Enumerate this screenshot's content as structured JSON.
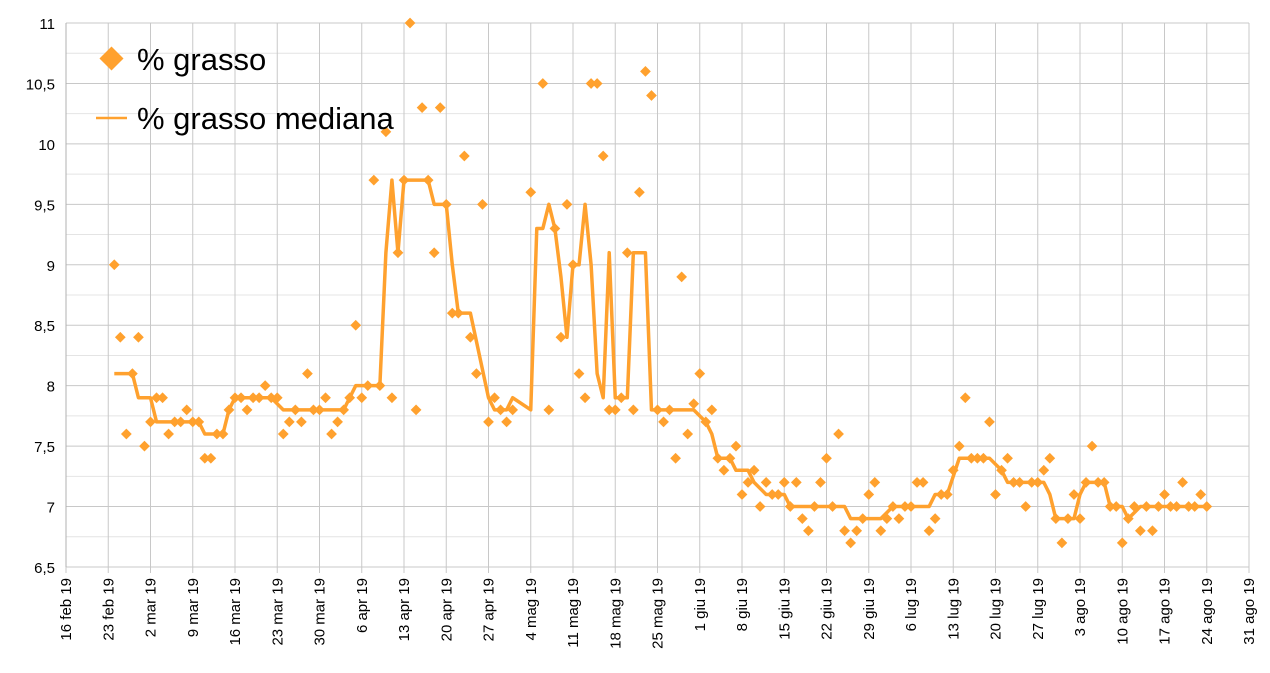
{
  "chart_data": {
    "type": "scatter",
    "title": "",
    "xlabel": "",
    "ylabel": "",
    "x_unit": "days since 16 feb 19",
    "xlim": [
      0,
      196
    ],
    "ylim": [
      6.5,
      11
    ],
    "grid": true,
    "legend_position": "top-left",
    "colors": {
      "series": "#FFA12E",
      "grid_major": "#c8c8c8",
      "grid_minor": "#e4e4e4",
      "axis": "#b0b0b0"
    },
    "x_tick_labels": [
      "16 feb 19",
      "23 feb 19",
      "2 mar 19",
      "9 mar 19",
      "16 mar 19",
      "23 mar 19",
      "30 mar 19",
      "6 apr 19",
      "13 apr 19",
      "20 apr 19",
      "27 apr 19",
      "4 mag 19",
      "11 mag 19",
      "18 mag 19",
      "25 mag 19",
      "1 giu 19",
      "8 giu 19",
      "15 giu 19",
      "22 giu 19",
      "29 giu 19",
      "6 lug 19",
      "13 lug 19",
      "20 lug 19",
      "27 lug 19",
      "3 ago 19",
      "10 ago 19",
      "17 ago 19",
      "24 ago 19",
      "31 ago 19"
    ],
    "x_tick_step_days": 7,
    "y_ticks": [
      6.5,
      7,
      7.5,
      8,
      8.5,
      9,
      9.5,
      10,
      10.5,
      11
    ],
    "y_tick_labels": [
      "6,5",
      "7",
      "7,5",
      "8",
      "8,5",
      "9",
      "9,5",
      "10",
      "10,5",
      "11"
    ],
    "series": [
      {
        "name": "% grasso",
        "kind": "points",
        "marker": "diamond",
        "points": [
          [
            8,
            9.0
          ],
          [
            9,
            8.4
          ],
          [
            10,
            7.6
          ],
          [
            11,
            8.1
          ],
          [
            12,
            8.4
          ],
          [
            13,
            7.5
          ],
          [
            14,
            7.7
          ],
          [
            15,
            7.9
          ],
          [
            16,
            7.9
          ],
          [
            17,
            7.6
          ],
          [
            18,
            7.7
          ],
          [
            19,
            7.7
          ],
          [
            20,
            7.8
          ],
          [
            21,
            7.7
          ],
          [
            22,
            7.7
          ],
          [
            23,
            7.4
          ],
          [
            24,
            7.4
          ],
          [
            25,
            7.6
          ],
          [
            26,
            7.6
          ],
          [
            27,
            7.8
          ],
          [
            28,
            7.9
          ],
          [
            29,
            7.9
          ],
          [
            30,
            7.8
          ],
          [
            31,
            7.9
          ],
          [
            32,
            7.9
          ],
          [
            33,
            8.0
          ],
          [
            34,
            7.9
          ],
          [
            35,
            7.9
          ],
          [
            36,
            7.6
          ],
          [
            37,
            7.7
          ],
          [
            38,
            7.8
          ],
          [
            39,
            7.7
          ],
          [
            40,
            8.1
          ],
          [
            41,
            7.8
          ],
          [
            42,
            7.8
          ],
          [
            43,
            7.9
          ],
          [
            44,
            7.6
          ],
          [
            45,
            7.7
          ],
          [
            46,
            7.8
          ],
          [
            47,
            7.9
          ],
          [
            48,
            8.5
          ],
          [
            49,
            7.9
          ],
          [
            50,
            8.0
          ],
          [
            51,
            9.7
          ],
          [
            52,
            8.0
          ],
          [
            53,
            10.1
          ],
          [
            54,
            7.9
          ],
          [
            55,
            9.1
          ],
          [
            56,
            9.7
          ],
          [
            57,
            11.0
          ],
          [
            58,
            7.8
          ],
          [
            59,
            10.3
          ],
          [
            60,
            9.7
          ],
          [
            61,
            9.1
          ],
          [
            62,
            10.3
          ],
          [
            63,
            9.5
          ],
          [
            64,
            8.6
          ],
          [
            65,
            8.6
          ],
          [
            66,
            9.9
          ],
          [
            67,
            8.4
          ],
          [
            68,
            8.1
          ],
          [
            69,
            9.5
          ],
          [
            70,
            7.7
          ],
          [
            71,
            7.9
          ],
          [
            72,
            7.8
          ],
          [
            73,
            7.7
          ],
          [
            74,
            7.8
          ],
          [
            77,
            9.6
          ],
          [
            79,
            10.5
          ],
          [
            80,
            7.8
          ],
          [
            81,
            9.3
          ],
          [
            82,
            8.4
          ],
          [
            83,
            9.5
          ],
          [
            84,
            9.0
          ],
          [
            85,
            8.1
          ],
          [
            86,
            7.9
          ],
          [
            87,
            10.5
          ],
          [
            88,
            10.5
          ],
          [
            89,
            9.9
          ],
          [
            90,
            7.8
          ],
          [
            91,
            7.8
          ],
          [
            92,
            7.9
          ],
          [
            93,
            9.1
          ],
          [
            94,
            7.8
          ],
          [
            95,
            9.6
          ],
          [
            96,
            10.6
          ],
          [
            97,
            10.4
          ],
          [
            98,
            7.8
          ],
          [
            99,
            7.7
          ],
          [
            100,
            7.8
          ],
          [
            101,
            7.4
          ],
          [
            102,
            8.9
          ],
          [
            103,
            7.6
          ],
          [
            104,
            7.85
          ],
          [
            105,
            8.1
          ],
          [
            106,
            7.7
          ],
          [
            107,
            7.8
          ],
          [
            108,
            7.4
          ],
          [
            109,
            7.3
          ],
          [
            110,
            7.4
          ],
          [
            111,
            7.5
          ],
          [
            112,
            7.1
          ],
          [
            113,
            7.2
          ],
          [
            114,
            7.3
          ],
          [
            115,
            7.0
          ],
          [
            116,
            7.2
          ],
          [
            117,
            7.1
          ],
          [
            118,
            7.1
          ],
          [
            119,
            7.2
          ],
          [
            120,
            7.0
          ],
          [
            121,
            7.2
          ],
          [
            122,
            6.9
          ],
          [
            123,
            6.8
          ],
          [
            124,
            7.0
          ],
          [
            125,
            7.2
          ],
          [
            126,
            7.4
          ],
          [
            127,
            7.0
          ],
          [
            128,
            7.6
          ],
          [
            129,
            6.8
          ],
          [
            130,
            6.7
          ],
          [
            131,
            6.8
          ],
          [
            132,
            6.9
          ],
          [
            133,
            7.1
          ],
          [
            134,
            7.2
          ],
          [
            135,
            6.8
          ],
          [
            136,
            6.9
          ],
          [
            137,
            7.0
          ],
          [
            138,
            6.9
          ],
          [
            139,
            7.0
          ],
          [
            140,
            7.0
          ],
          [
            141,
            7.2
          ],
          [
            142,
            7.2
          ],
          [
            143,
            6.8
          ],
          [
            144,
            6.9
          ],
          [
            145,
            7.1
          ],
          [
            146,
            7.1
          ],
          [
            147,
            7.3
          ],
          [
            148,
            7.5
          ],
          [
            149,
            7.9
          ],
          [
            150,
            7.4
          ],
          [
            151,
            7.4
          ],
          [
            152,
            7.4
          ],
          [
            153,
            7.7
          ],
          [
            154,
            7.1
          ],
          [
            155,
            7.3
          ],
          [
            156,
            7.4
          ],
          [
            157,
            7.2
          ],
          [
            158,
            7.2
          ],
          [
            159,
            7.0
          ],
          [
            160,
            7.2
          ],
          [
            161,
            7.2
          ],
          [
            162,
            7.3
          ],
          [
            163,
            7.4
          ],
          [
            164,
            6.9
          ],
          [
            165,
            6.7
          ],
          [
            166,
            6.9
          ],
          [
            167,
            7.1
          ],
          [
            168,
            6.9
          ],
          [
            169,
            7.2
          ],
          [
            170,
            7.5
          ],
          [
            171,
            7.2
          ],
          [
            172,
            7.2
          ],
          [
            173,
            7.0
          ],
          [
            174,
            7.0
          ],
          [
            175,
            6.7
          ],
          [
            176,
            6.9
          ],
          [
            177,
            7.0
          ],
          [
            178,
            6.8
          ],
          [
            179,
            7.0
          ],
          [
            180,
            6.8
          ],
          [
            181,
            7.0
          ],
          [
            182,
            7.1
          ],
          [
            183,
            7.0
          ],
          [
            184,
            7.0
          ],
          [
            185,
            7.2
          ],
          [
            186,
            7.0
          ],
          [
            187,
            7.0
          ],
          [
            188,
            7.1
          ],
          [
            189,
            7.0
          ]
        ]
      },
      {
        "name": "% grasso mediana",
        "kind": "line",
        "points": [
          [
            8,
            8.1
          ],
          [
            11,
            8.1
          ],
          [
            12,
            7.9
          ],
          [
            14,
            7.9
          ],
          [
            15,
            7.7
          ],
          [
            22,
            7.7
          ],
          [
            23,
            7.6
          ],
          [
            26,
            7.6
          ],
          [
            27,
            7.8
          ],
          [
            28,
            7.9
          ],
          [
            34,
            7.9
          ],
          [
            36,
            7.8
          ],
          [
            46,
            7.8
          ],
          [
            47,
            7.9
          ],
          [
            48,
            8.0
          ],
          [
            52,
            8.0
          ],
          [
            53,
            9.1
          ],
          [
            54,
            9.7
          ],
          [
            55,
            9.1
          ],
          [
            56,
            9.7
          ],
          [
            60,
            9.7
          ],
          [
            61,
            9.5
          ],
          [
            63,
            9.5
          ],
          [
            64,
            9.0
          ],
          [
            65,
            8.6
          ],
          [
            67,
            8.6
          ],
          [
            70,
            7.9
          ],
          [
            71,
            7.8
          ],
          [
            73,
            7.8
          ],
          [
            74,
            7.9
          ],
          [
            77,
            7.8
          ],
          [
            78,
            9.3
          ],
          [
            79,
            9.3
          ],
          [
            80,
            9.5
          ],
          [
            81,
            9.3
          ],
          [
            82,
            8.9
          ],
          [
            83,
            8.4
          ],
          [
            84,
            9.0
          ],
          [
            85,
            9.0
          ],
          [
            86,
            9.5
          ],
          [
            87,
            9.0
          ],
          [
            88,
            8.1
          ],
          [
            89,
            7.9
          ],
          [
            90,
            9.1
          ],
          [
            91,
            7.9
          ],
          [
            93,
            7.9
          ],
          [
            94,
            9.1
          ],
          [
            96,
            9.1
          ],
          [
            97,
            7.8
          ],
          [
            104,
            7.8
          ],
          [
            106,
            7.7
          ],
          [
            107,
            7.6
          ],
          [
            108,
            7.4
          ],
          [
            110,
            7.4
          ],
          [
            111,
            7.3
          ],
          [
            113,
            7.3
          ],
          [
            114,
            7.2
          ],
          [
            116,
            7.1
          ],
          [
            119,
            7.1
          ],
          [
            120,
            7.0
          ],
          [
            129,
            7.0
          ],
          [
            130,
            6.9
          ],
          [
            135,
            6.9
          ],
          [
            136,
            6.95
          ],
          [
            137,
            7.0
          ],
          [
            143,
            7.0
          ],
          [
            144,
            7.1
          ],
          [
            146,
            7.1
          ],
          [
            148,
            7.4
          ],
          [
            153,
            7.4
          ],
          [
            155,
            7.3
          ],
          [
            156,
            7.2
          ],
          [
            162,
            7.2
          ],
          [
            163,
            7.1
          ],
          [
            164,
            6.9
          ],
          [
            167,
            6.9
          ],
          [
            168,
            7.1
          ],
          [
            169,
            7.2
          ],
          [
            172,
            7.2
          ],
          [
            173,
            7.0
          ],
          [
            175,
            7.0
          ],
          [
            176,
            6.9
          ],
          [
            177,
            6.95
          ],
          [
            178,
            7.0
          ],
          [
            189,
            7.0
          ]
        ]
      }
    ]
  }
}
